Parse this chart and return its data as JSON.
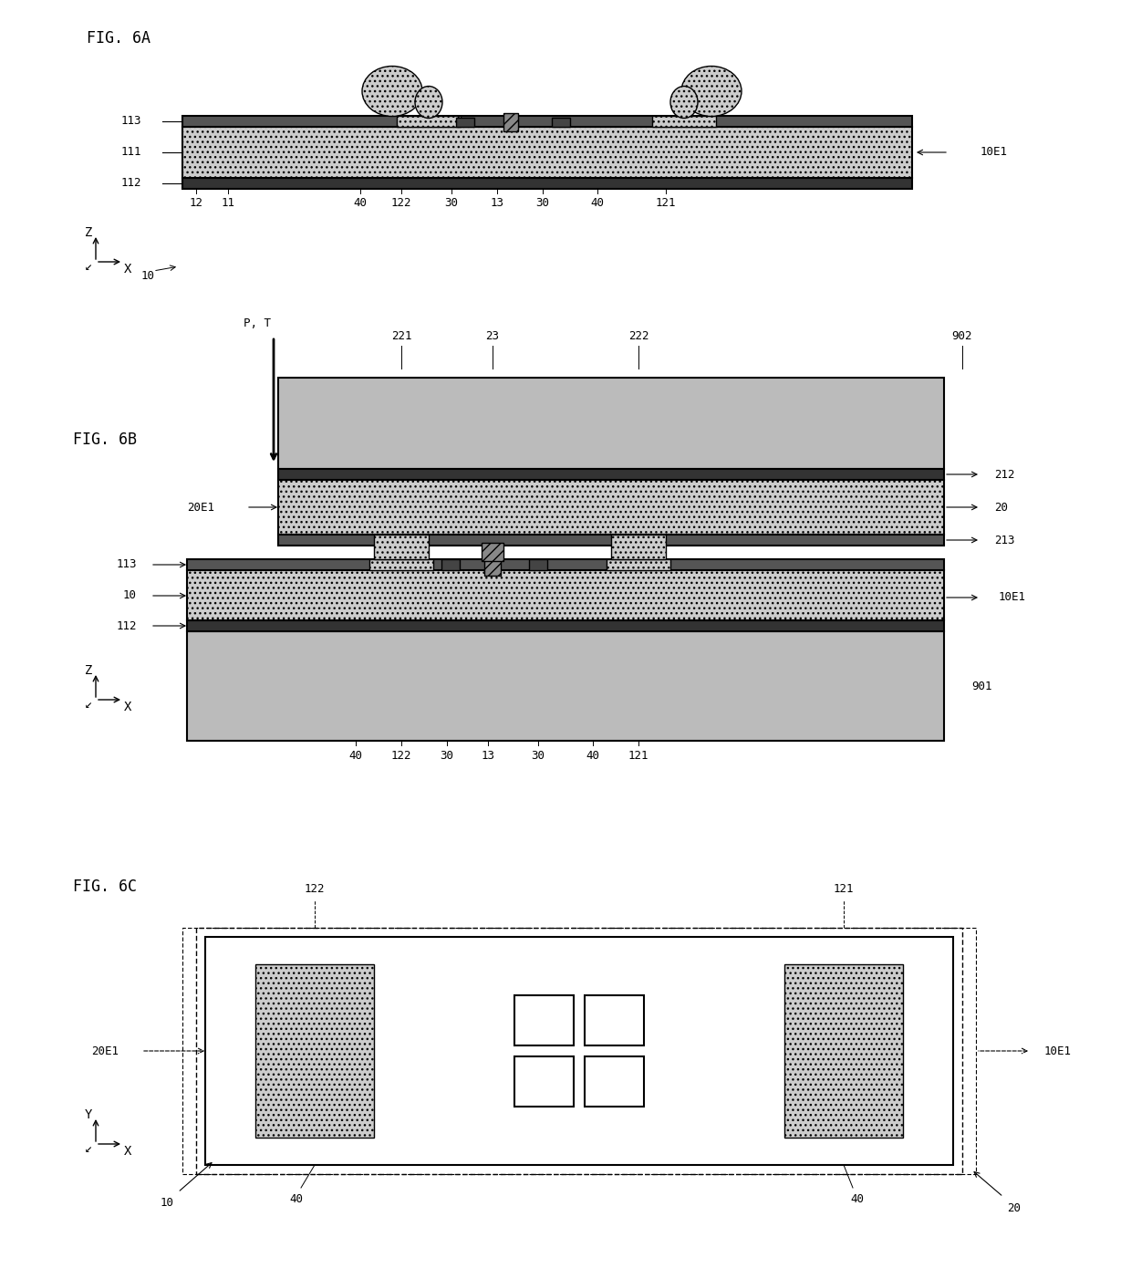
{
  "fig_title_6a": "FIG. 6A",
  "fig_title_6b": "FIG. 6B",
  "fig_title_6c": "FIG. 6C",
  "bg_color": "#ffffff",
  "light_dot_fill": "#d8d8d8",
  "medium_gray": "#aaaaaa",
  "dark_gray": "#555555",
  "hatched_fill": "#cccccc",
  "grid_fill": "#bbbbbb",
  "white": "#ffffff",
  "black": "#000000"
}
